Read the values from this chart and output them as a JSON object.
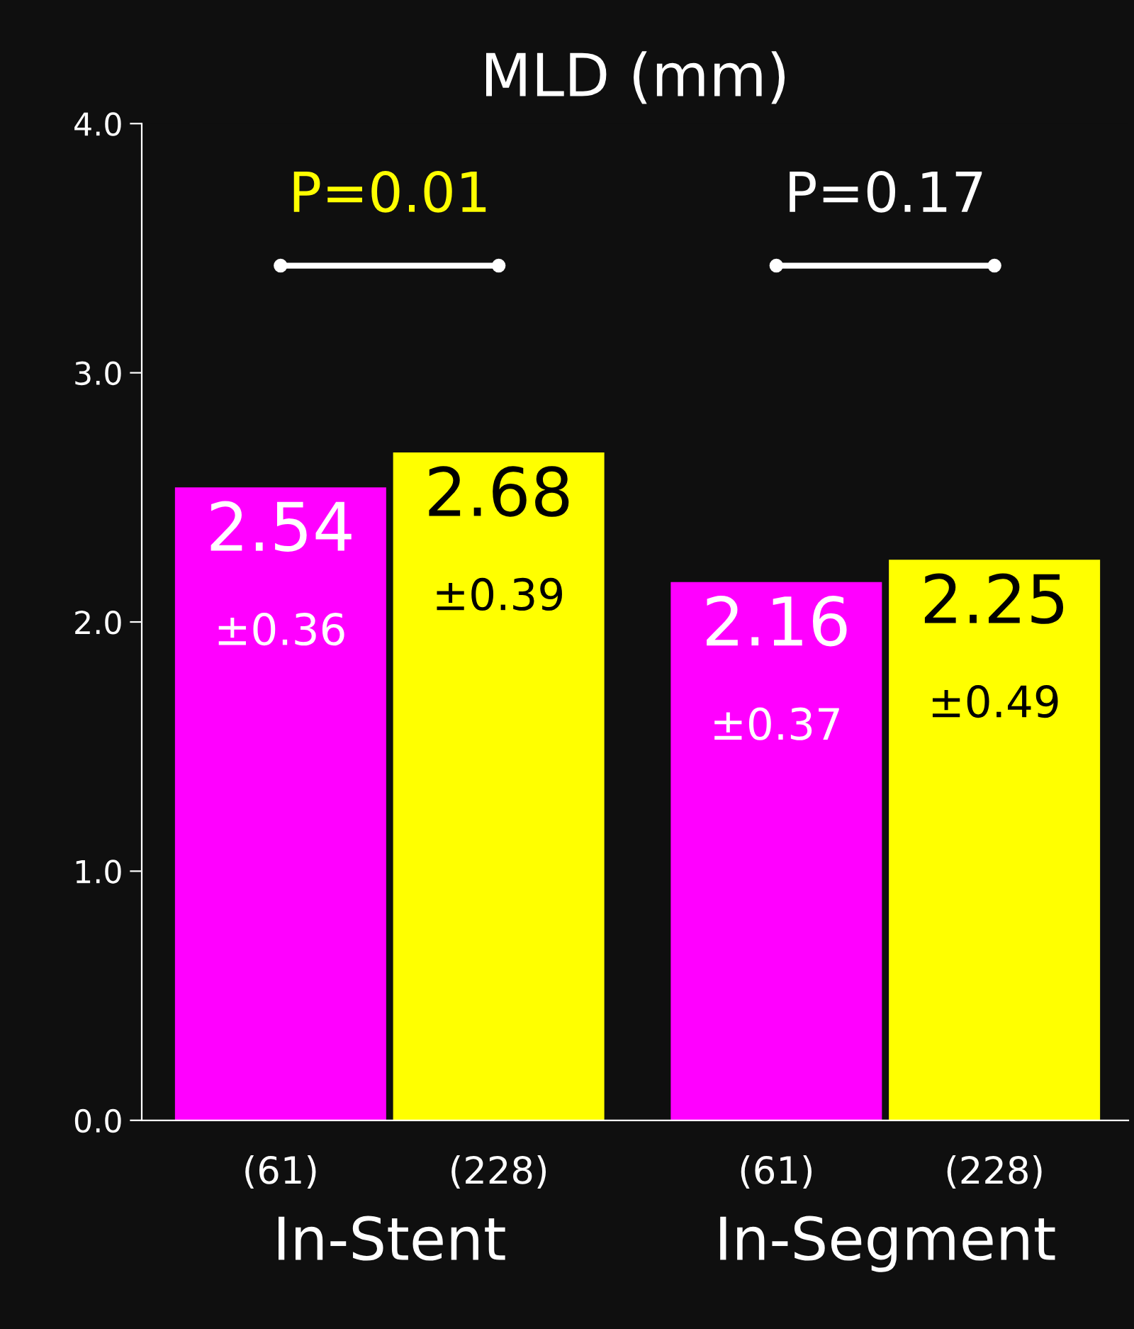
{
  "chart_data": {
    "type": "bar",
    "title": "MLD (mm)",
    "categories": [
      "In-Stent",
      "In-Segment"
    ],
    "series": [
      {
        "color": "#ff00ff",
        "values": [
          2.54,
          2.16
        ],
        "value_labels": [
          "2.54\n±0.36",
          "2.16\n±0.37"
        ]
      },
      {
        "color": "#ffff00",
        "values": [
          2.68,
          2.25
        ],
        "value_labels": [
          "2.68\n±0.39",
          "2.25\n±0.49"
        ]
      }
    ],
    "ylim": [
      0,
      4
    ],
    "yticks": [
      {
        "value": 0,
        "label": "0.0"
      },
      {
        "value": 1,
        "label": "1.0"
      },
      {
        "value": 2,
        "label": "2.0"
      },
      {
        "value": 3,
        "label": "3.0"
      },
      {
        "value": 4,
        "label": "4.0"
      }
    ],
    "annotations": [
      "P=0.01",
      "P=0.17",
      "(61)",
      "(228)",
      "(61)",
      "(228)"
    ],
    "grid": false,
    "legend": false
  }
}
